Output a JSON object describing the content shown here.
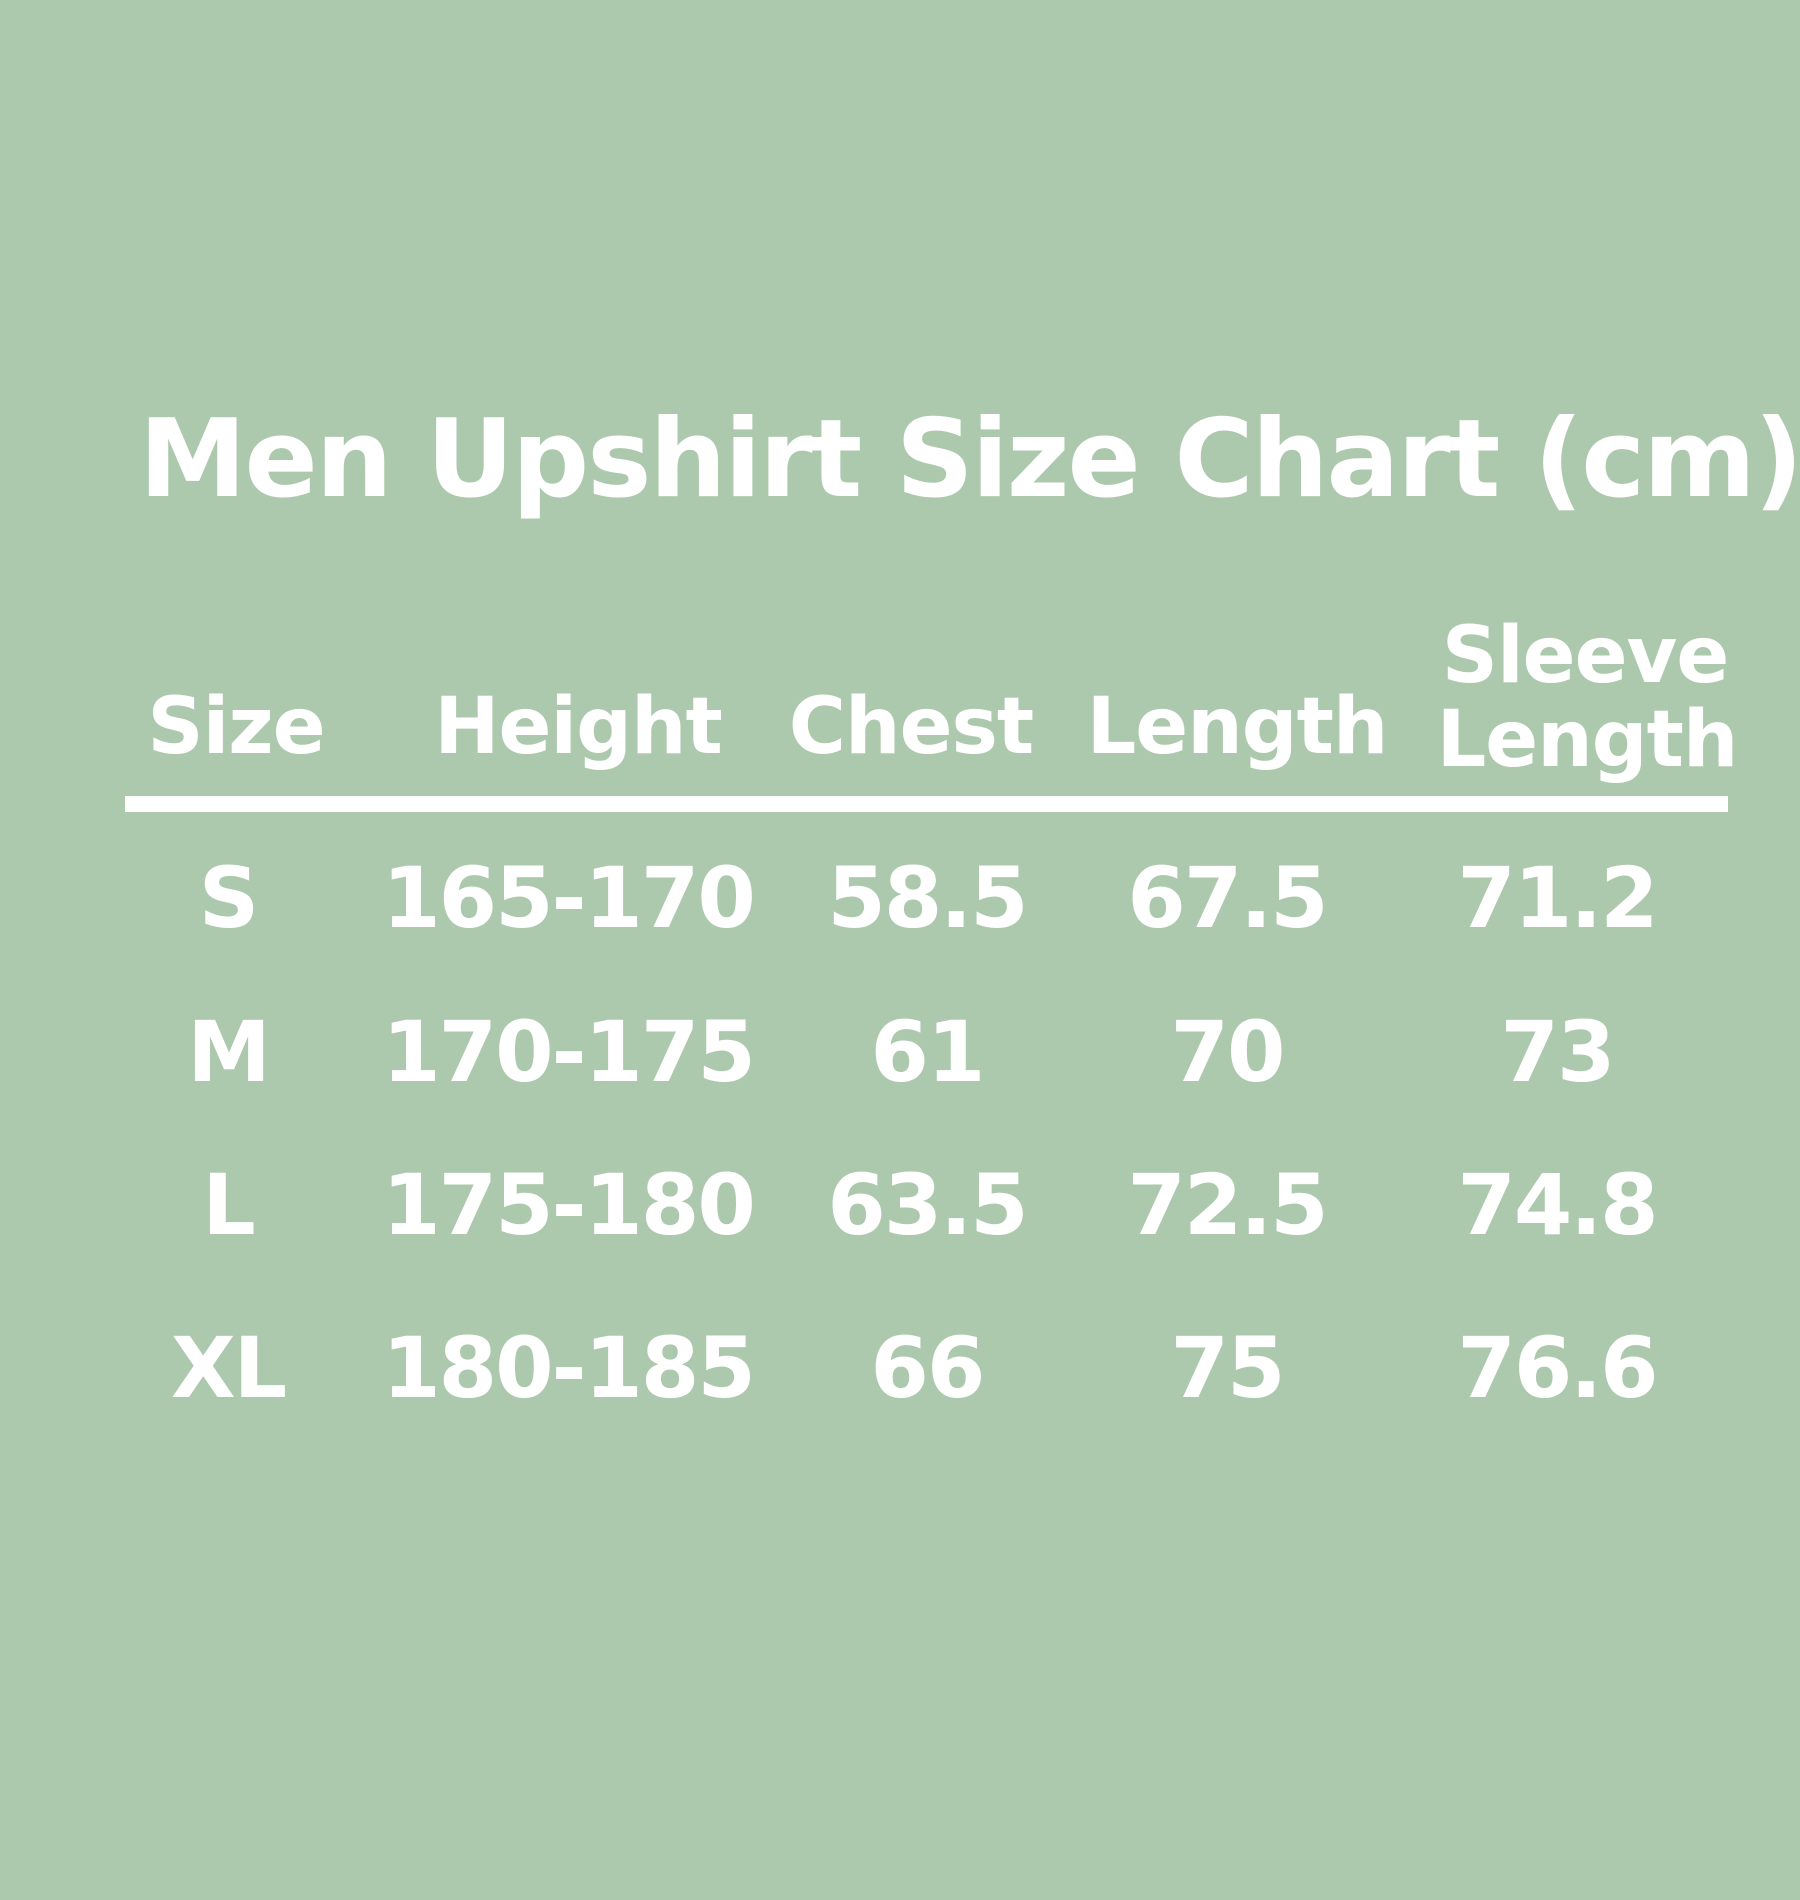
{
  "title": "Men Upshirt Size Chart  (cm)",
  "colors": {
    "background": "#adc9ad",
    "text": "#ffffff"
  },
  "table": {
    "headers": [
      "Size",
      "Height",
      "Chest",
      "Length",
      "Sleeve Length"
    ],
    "sleeve_header_lines": [
      "Sleeve",
      "Length"
    ],
    "rows": [
      [
        "S",
        "165-170",
        "58.5",
        "67.5",
        "71.2"
      ],
      [
        "M",
        "170-175",
        "61",
        "70",
        "73"
      ],
      [
        "L",
        "175-180",
        "63.5",
        "72.5",
        "74.8"
      ],
      [
        "XL",
        "180-185",
        "66",
        "75",
        "76.6"
      ]
    ]
  }
}
